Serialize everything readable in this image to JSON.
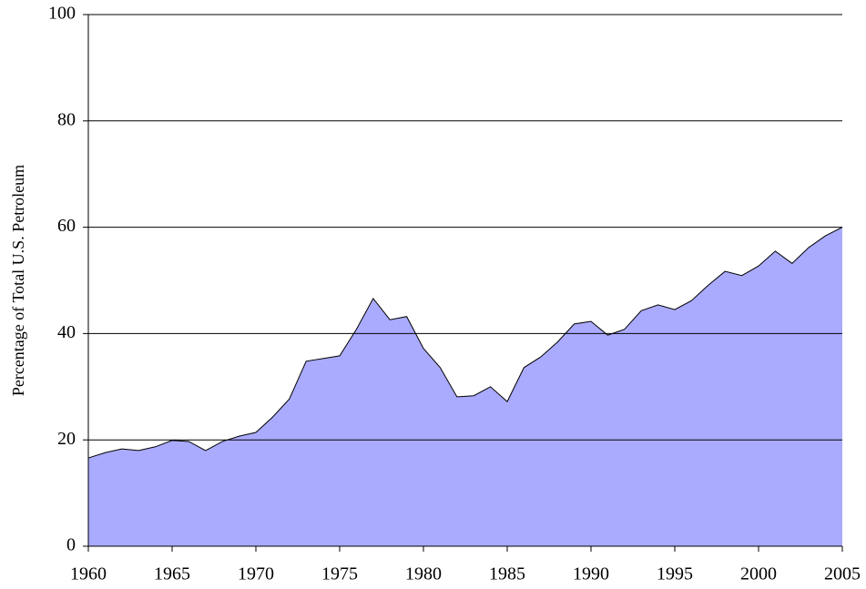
{
  "chart_data": {
    "type": "area",
    "y_label": "Percentage of Total U.S. Petroleum",
    "x": [
      1960,
      1961,
      1962,
      1963,
      1964,
      1965,
      1966,
      1967,
      1968,
      1969,
      1970,
      1971,
      1972,
      1973,
      1974,
      1975,
      1976,
      1977,
      1978,
      1979,
      1980,
      1981,
      1982,
      1983,
      1984,
      1985,
      1986,
      1987,
      1988,
      1989,
      1990,
      1991,
      1992,
      1993,
      1994,
      1995,
      1996,
      1997,
      1998,
      1999,
      2000,
      2001,
      2002,
      2003,
      2004,
      2005
    ],
    "values": [
      16.6,
      17.6,
      18.3,
      18.0,
      18.7,
      19.9,
      19.7,
      18.0,
      19.7,
      20.7,
      21.4,
      24.3,
      27.7,
      34.8,
      35.3,
      35.8,
      40.8,
      46.6,
      42.6,
      43.2,
      37.2,
      33.6,
      28.1,
      28.3,
      30.0,
      27.2,
      33.6,
      35.6,
      38.4,
      41.8,
      42.3,
      39.7,
      40.8,
      44.3,
      45.4,
      44.5,
      46.2,
      49.1,
      51.7,
      50.9,
      52.7,
      55.5,
      53.2,
      56.2,
      58.4,
      60.0
    ],
    "color": "#aaaaff",
    "xlim": [
      1960,
      2005
    ],
    "xticks": [
      1960,
      1965,
      1970,
      1975,
      1980,
      1985,
      1990,
      1995,
      2000,
      2005
    ],
    "ylim": [
      0,
      100
    ],
    "yticks": [
      0,
      20,
      40,
      60,
      80,
      100
    ],
    "grid": true
  }
}
